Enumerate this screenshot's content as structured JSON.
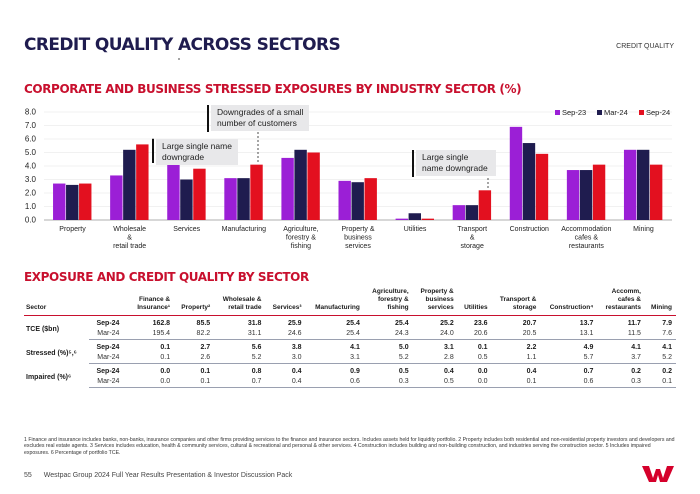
{
  "header": {
    "title": "CREDIT QUALITY ACROSS SECTORS",
    "section_tag": "CREDIT QUALITY"
  },
  "chart_section_title": "CORPORATE AND BUSINESS STRESSED EXPOSURES BY INDUSTRY SECTOR (%)",
  "table_section_title": "EXPOSURE AND CREDIT QUALITY BY SECTOR",
  "colors": {
    "sep23": "#9b1fd6",
    "mar24": "#1f1c4f",
    "sep24": "#e3101f",
    "brand_red": "#c8102e",
    "navy": "#1f1c4f"
  },
  "callouts": {
    "c1": "Large single name\ndowngrade",
    "c2": "Downgrades of a small\nnumber of customers",
    "c3": "Large single\nname downgrade"
  },
  "chart_data": {
    "type": "bar",
    "title": "CORPORATE AND BUSINESS STRESSED EXPOSURES BY INDUSTRY SECTOR (%)",
    "ylim": [
      0,
      8
    ],
    "yticks": [
      "0.0",
      "1.0",
      "2.0",
      "3.0",
      "4.0",
      "5.0",
      "6.0",
      "7.0",
      "8.0"
    ],
    "legend_position": "top-right",
    "categories": [
      [
        "Property"
      ],
      [
        "Wholesale",
        "&",
        "retail trade"
      ],
      [
        "Services"
      ],
      [
        "Manufacturing"
      ],
      [
        "Agriculture,",
        "forestry &",
        "fishing"
      ],
      [
        "Property &",
        "business",
        "services"
      ],
      [
        "Utilities"
      ],
      [
        "Transport",
        "&",
        "storage"
      ],
      [
        "Construction"
      ],
      [
        "Accommodation",
        "cafes &",
        "restaurants"
      ],
      [
        "Mining"
      ]
    ],
    "series": [
      {
        "name": "Sep-23",
        "values": [
          2.7,
          3.3,
          4.1,
          3.1,
          4.6,
          2.9,
          0.1,
          1.1,
          6.9,
          3.7,
          5.2
        ]
      },
      {
        "name": "Mar-24",
        "values": [
          2.6,
          5.2,
          3.0,
          3.1,
          5.2,
          2.8,
          0.5,
          1.1,
          5.7,
          3.7,
          5.2
        ]
      },
      {
        "name": "Sep-24",
        "values": [
          2.7,
          5.6,
          3.8,
          4.1,
          5.0,
          3.1,
          0.1,
          2.2,
          4.9,
          4.1,
          4.1
        ]
      }
    ]
  },
  "table": {
    "col_sector": "Sector",
    "columns": [
      [
        "Finance &",
        "Insurance¹"
      ],
      [
        "Property²"
      ],
      [
        "Wholesale &",
        "retail trade"
      ],
      [
        "Services³"
      ],
      [
        "Manufacturing"
      ],
      [
        "Agriculture,",
        "forestry &",
        "fishing"
      ],
      [
        "Property &",
        "business",
        "services"
      ],
      [
        "Utilities"
      ],
      [
        "Transport &",
        "storage"
      ],
      [
        "Construction⁴"
      ],
      [
        "Accomm,",
        "cafes &",
        "restaurants"
      ],
      [
        "Mining"
      ]
    ],
    "rows": [
      {
        "metric": "TCE ($bn)",
        "sep24": [
          "162.8",
          "85.5",
          "31.8",
          "25.9",
          "25.4",
          "25.4",
          "25.2",
          "23.6",
          "20.7",
          "13.7",
          "11.7",
          "7.9"
        ],
        "mar24": [
          "195.4",
          "82.2",
          "31.1",
          "24.6",
          "25.4",
          "24.3",
          "24.0",
          "20.6",
          "20.5",
          "13.1",
          "11.5",
          "7.6"
        ]
      },
      {
        "metric": "Stressed (%)⁵,⁶",
        "sep24": [
          "0.1",
          "2.7",
          "5.6",
          "3.8",
          "4.1",
          "5.0",
          "3.1",
          "0.1",
          "2.2",
          "4.9",
          "4.1",
          "4.1"
        ],
        "mar24": [
          "0.1",
          "2.6",
          "5.2",
          "3.0",
          "3.1",
          "5.2",
          "2.8",
          "0.5",
          "1.1",
          "5.7",
          "3.7",
          "5.2"
        ]
      },
      {
        "metric": "Impaired (%)⁶",
        "sep24": [
          "0.0",
          "0.1",
          "0.8",
          "0.4",
          "0.9",
          "0.5",
          "0.4",
          "0.0",
          "0.4",
          "0.7",
          "0.2",
          "0.2"
        ],
        "mar24": [
          "0.0",
          "0.1",
          "0.7",
          "0.4",
          "0.6",
          "0.3",
          "0.5",
          "0.0",
          "0.1",
          "0.6",
          "0.3",
          "0.1"
        ]
      }
    ],
    "period_sep": "Sep-24",
    "period_mar": "Mar-24"
  },
  "footnotes": "1 Finance and insurance includes banks, non-banks, insurance companies and other firms providing services to the finance and insurance sectors. Includes assets held for liquidity portfolio. 2 Property includes both residential and non-residential property investors and developers and excludes real estate agents. 3 Services includes education, health & community services, cultural & recreational and personal & other services. 4 Construction includes building and non-building construction, and industries serving the construction sector. 5 Includes impaired exposures. 6 Percentage of portfolio TCE.",
  "footer": {
    "page": "55",
    "text": "Westpac Group 2024 Full Year Results Presentation & Investor Discussion Pack"
  }
}
